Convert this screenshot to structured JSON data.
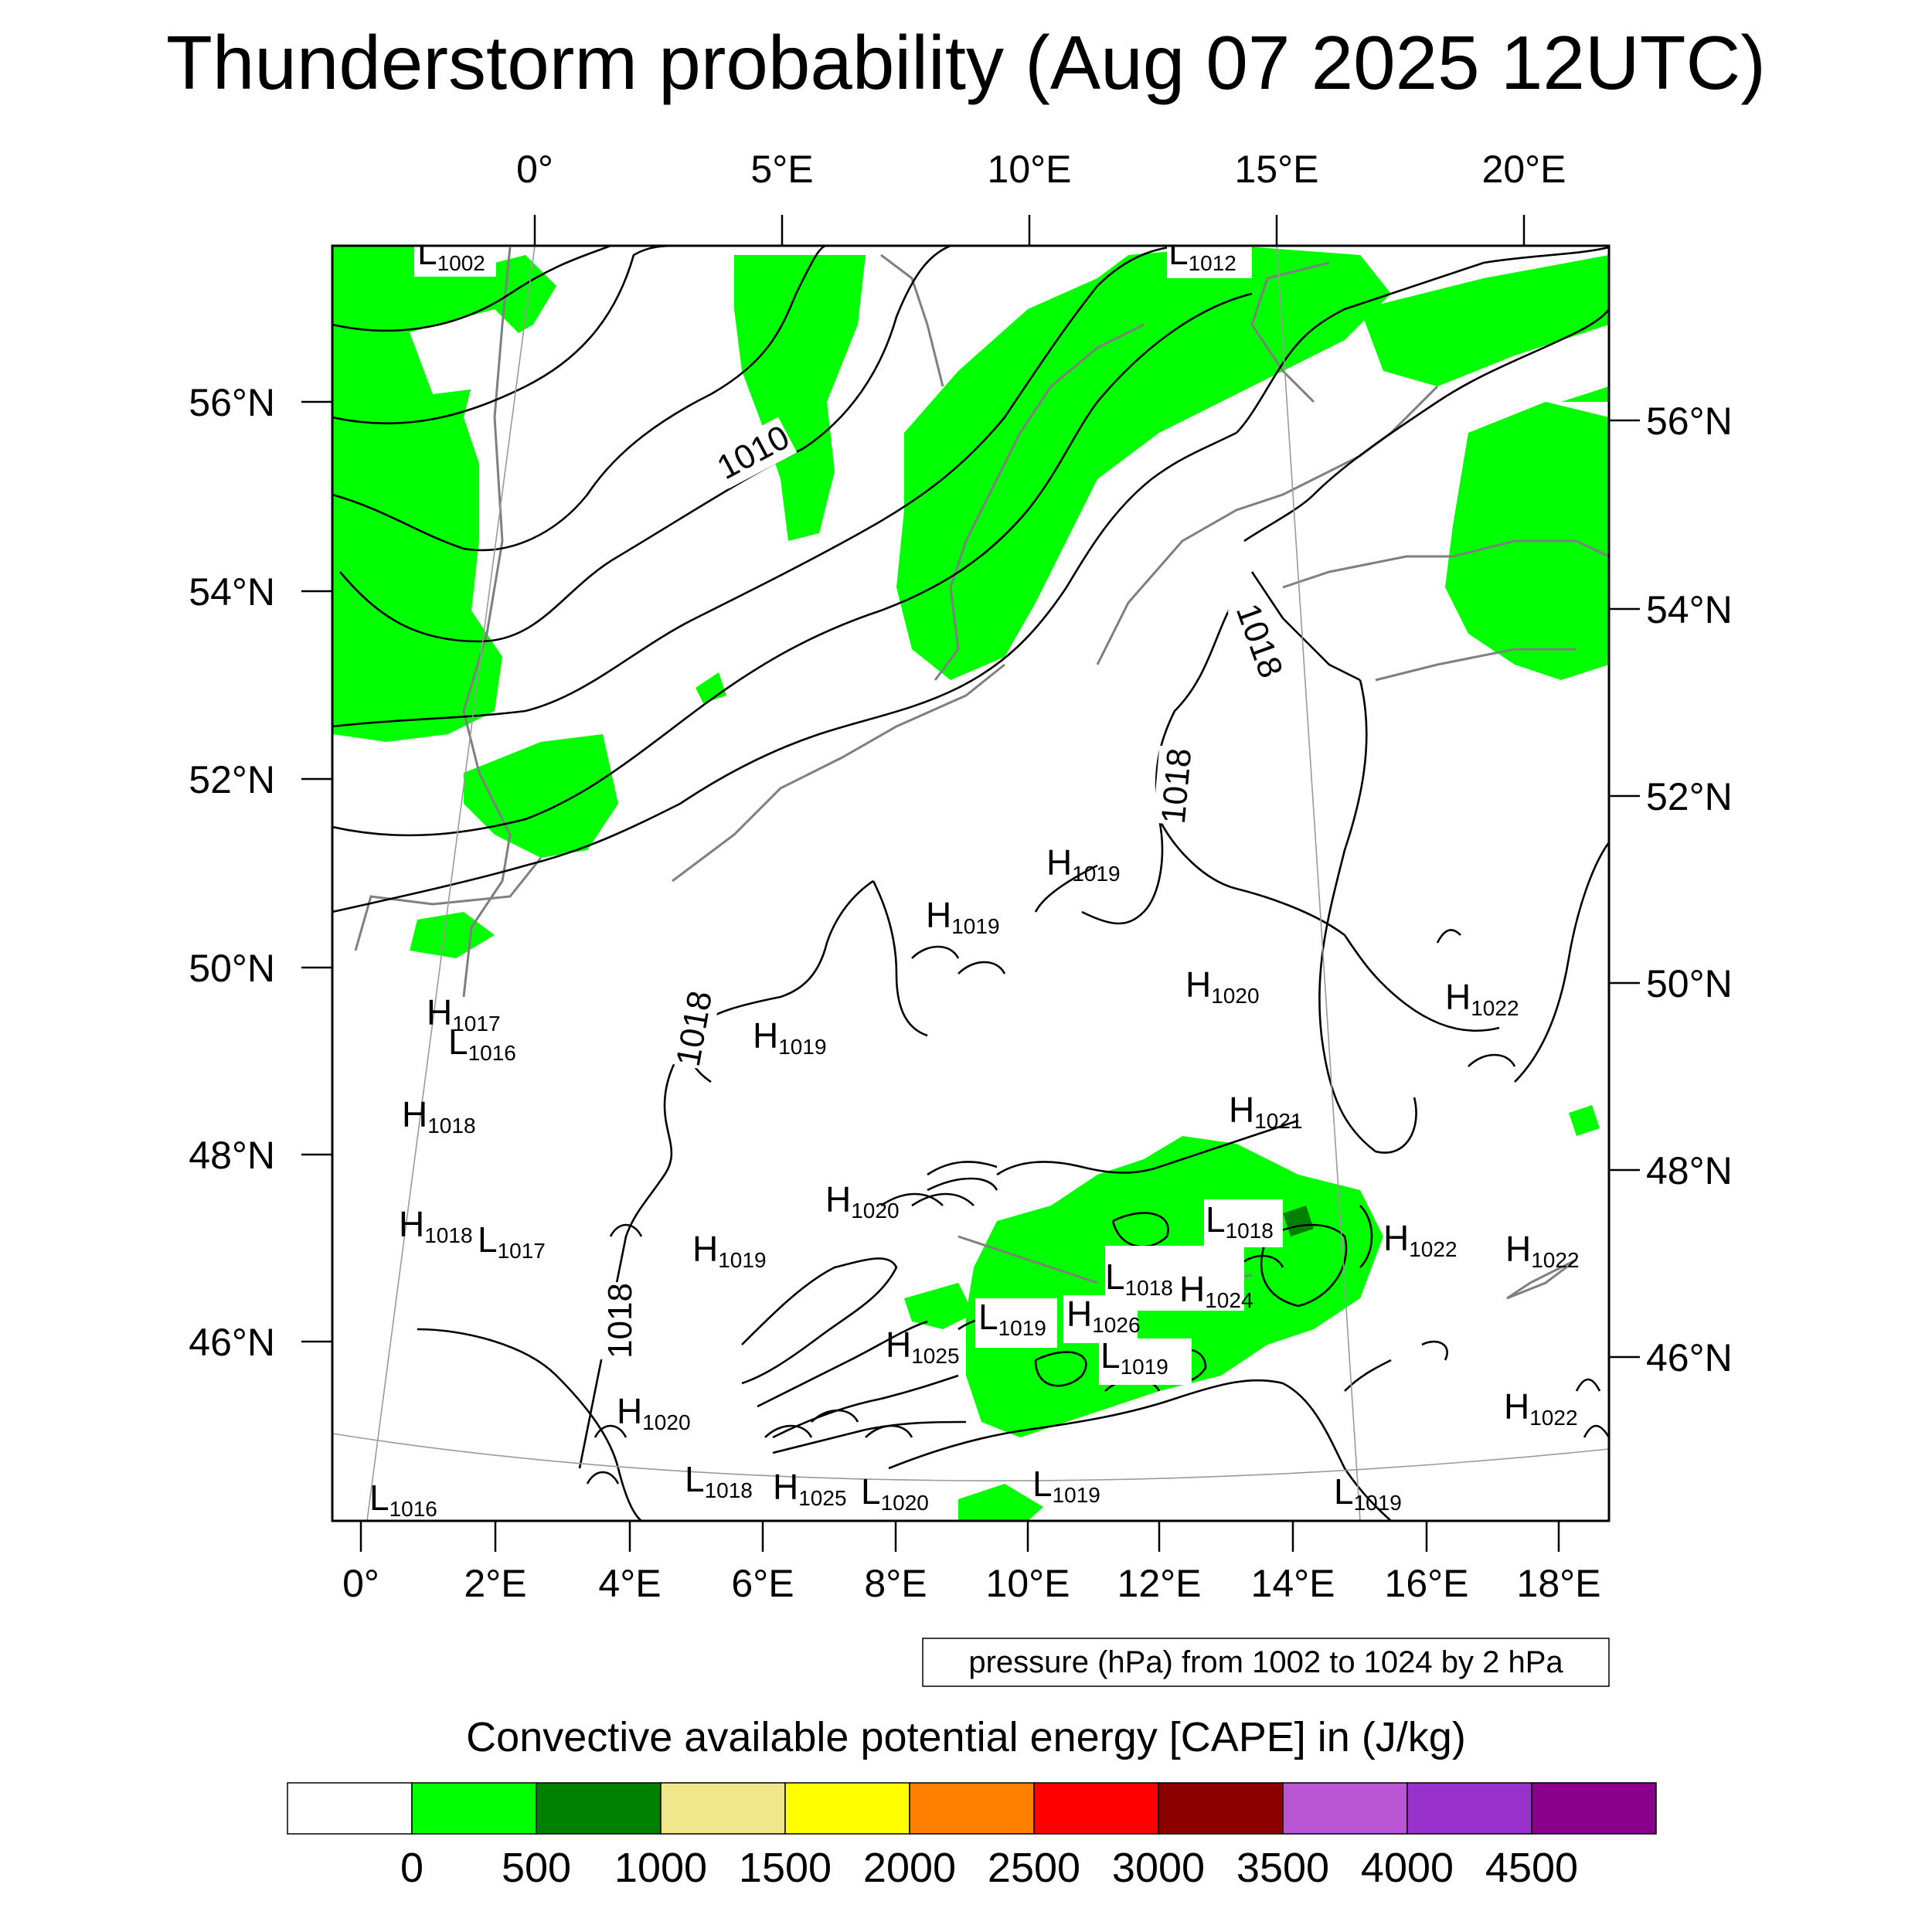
{
  "title": "Thunderstorm probability (Aug 07 2025 12UTC)",
  "top_lon_labels": [
    "0°",
    "5°E",
    "10°E",
    "15°E",
    "20°E"
  ],
  "left_lat_labels": [
    "56°N",
    "54°N",
    "52°N",
    "50°N",
    "48°N",
    "46°N"
  ],
  "right_lat_labels": [
    "56°N",
    "54°N",
    "52°N",
    "50°N",
    "48°N",
    "46°N"
  ],
  "bottom_lon_labels": [
    "0°",
    "2°E",
    "4°E",
    "6°E",
    "8°E",
    "10°E",
    "12°E",
    "14°E",
    "16°E",
    "18°E"
  ],
  "isobar_labels": [
    "1010",
    "1018",
    "1018",
    "1018",
    "1018"
  ],
  "pressure_centers": [
    {
      "t": "L",
      "v": "1002"
    },
    {
      "t": "L",
      "v": "1012"
    },
    {
      "t": "H",
      "v": "1019"
    },
    {
      "t": "H",
      "v": "1019"
    },
    {
      "t": "H",
      "v": "1019"
    },
    {
      "t": "H",
      "v": "1017"
    },
    {
      "t": "L",
      "v": "1016"
    },
    {
      "t": "H",
      "v": "1018"
    },
    {
      "t": "H",
      "v": "1018"
    },
    {
      "t": "L",
      "v": "1017"
    },
    {
      "t": "H",
      "v": "1019"
    },
    {
      "t": "H",
      "v": "1020"
    },
    {
      "t": "H",
      "v": "1020"
    },
    {
      "t": "H",
      "v": "1021"
    },
    {
      "t": "H",
      "v": "1022"
    },
    {
      "t": "H",
      "v": "1022"
    },
    {
      "t": "H",
      "v": "1022"
    },
    {
      "t": "L",
      "v": "1018"
    },
    {
      "t": "L",
      "v": "1018"
    },
    {
      "t": "H",
      "v": "1024"
    },
    {
      "t": "L",
      "v": "1019"
    },
    {
      "t": "H",
      "v": "1026"
    },
    {
      "t": "L",
      "v": "1019"
    },
    {
      "t": "H",
      "v": "1025"
    },
    {
      "t": "H",
      "v": "1020"
    },
    {
      "t": "L",
      "v": "1016"
    },
    {
      "t": "L",
      "v": "1018"
    },
    {
      "t": "H",
      "v": "1025"
    },
    {
      "t": "L",
      "v": "1020"
    },
    {
      "t": "L",
      "v": "1019"
    },
    {
      "t": "L",
      "v": "1019"
    },
    {
      "t": "H",
      "v": "1022"
    }
  ],
  "pressure_note": "pressure (hPa) from 1002 to 1024 by 2 hPa",
  "colorbar": {
    "title": "Convective available potential energy [CAPE] in (J/kg)",
    "colors": [
      "#ffffff",
      "#00ff00",
      "#008000",
      "#f0e68c",
      "#ffff00",
      "#ff8000",
      "#ff0000",
      "#8b0000",
      "#ba55d3",
      "#9932cc",
      "#8b008b"
    ],
    "labels": [
      "0",
      "500",
      "1000",
      "1500",
      "2000",
      "2500",
      "3000",
      "3500",
      "4000",
      "4500"
    ]
  }
}
